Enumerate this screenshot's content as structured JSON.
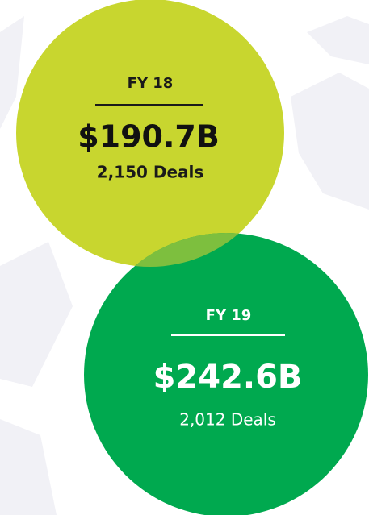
{
  "items": [
    {
      "label": "FY 18",
      "amount": "$190.7B",
      "deals": "2,150 Deals"
    },
    {
      "label": "FY 19",
      "amount": "$242.6B",
      "deals": "2,012 Deals"
    }
  ]
}
